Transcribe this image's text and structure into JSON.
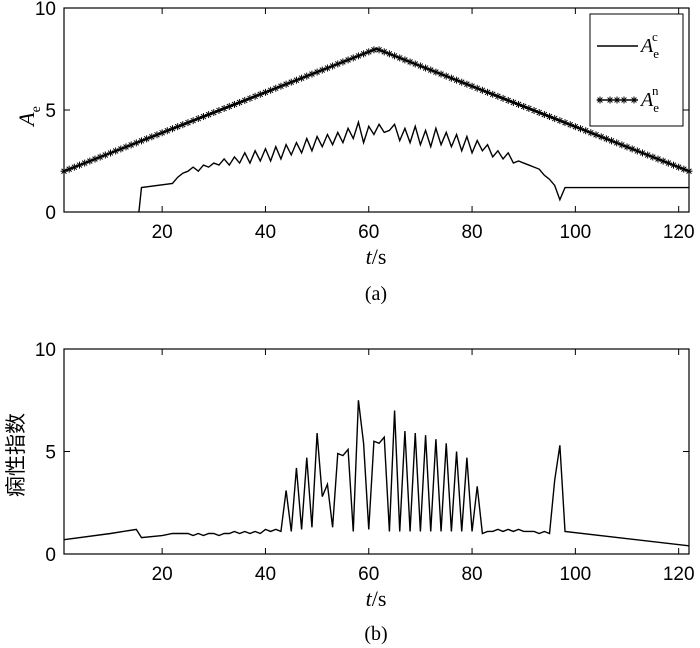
{
  "chart_data": [
    {
      "type": "line",
      "panel": "(a)",
      "caption": "(a)",
      "xlabel": "t/s",
      "ylabel": "A_e",
      "xlim": [
        1,
        122
      ],
      "ylim": [
        0,
        10
      ],
      "xticks": [
        20,
        40,
        60,
        80,
        100,
        120
      ],
      "yticks": [
        0,
        5,
        10
      ],
      "grid": false,
      "legend_position": "top-right",
      "series": [
        {
          "name": "A_e^c",
          "legend_main": "A",
          "legend_sub": "e",
          "legend_sup": "c",
          "marker": "none",
          "x": [
            15.5,
            16,
            22,
            23,
            24,
            25,
            26,
            27,
            28,
            29,
            30,
            31,
            32,
            33,
            34,
            35,
            36,
            37,
            38,
            39,
            40,
            41,
            42,
            43,
            44,
            45,
            46,
            47,
            48,
            49,
            50,
            51,
            52,
            53,
            54,
            55,
            56,
            57,
            58,
            59,
            60,
            61,
            62,
            63,
            64,
            65,
            66,
            67,
            68,
            69,
            70,
            71,
            72,
            73,
            74,
            75,
            76,
            77,
            78,
            79,
            80,
            81,
            82,
            83,
            84,
            85,
            86,
            87,
            88,
            89,
            90,
            91,
            92,
            93,
            94,
            95,
            96,
            97,
            98,
            122
          ],
          "y": [
            0,
            1.2,
            1.4,
            1.7,
            1.9,
            2.0,
            2.2,
            2.0,
            2.3,
            2.2,
            2.4,
            2.3,
            2.6,
            2.3,
            2.7,
            2.4,
            2.9,
            2.4,
            3.0,
            2.5,
            3.1,
            2.5,
            3.2,
            2.6,
            3.3,
            2.8,
            3.4,
            2.9,
            3.6,
            3.0,
            3.7,
            3.2,
            3.8,
            3.3,
            3.9,
            3.4,
            4.1,
            3.6,
            4.4,
            3.4,
            4.2,
            3.8,
            4.3,
            3.9,
            4.0,
            4.3,
            3.5,
            4.1,
            3.4,
            4.2,
            3.3,
            4.0,
            3.2,
            4.1,
            3.3,
            3.9,
            3.2,
            3.8,
            3.0,
            3.7,
            2.9,
            3.5,
            3.0,
            3.3,
            2.7,
            3.0,
            2.6,
            2.9,
            2.4,
            2.5,
            2.4,
            2.3,
            2.2,
            2.1,
            1.8,
            1.6,
            1.3,
            0.6,
            1.2,
            1.2
          ]
        },
        {
          "name": "A_e^n",
          "legend_main": "A",
          "legend_sub": "e",
          "legend_sup": "n",
          "marker": "star",
          "x": [
            1,
            61.5,
            122
          ],
          "y": [
            2.0,
            8.0,
            2.0
          ],
          "marker_step": 1
        }
      ]
    },
    {
      "type": "line",
      "panel": "(b)",
      "caption": "(b)",
      "xlabel": "t/s",
      "ylabel": "痫性指数",
      "xlim": [
        1,
        122
      ],
      "ylim": [
        0,
        10
      ],
      "xticks": [
        20,
        40,
        60,
        80,
        100,
        120
      ],
      "yticks": [
        0,
        5,
        10
      ],
      "grid": false,
      "series": [
        {
          "x": [
            1,
            10,
            15,
            16,
            20,
            22,
            25,
            26,
            27,
            28,
            29,
            30,
            31,
            32,
            33,
            34,
            35,
            36,
            37,
            38,
            39,
            40,
            41,
            42,
            43,
            44,
            45,
            46,
            47,
            48,
            49,
            50,
            51,
            52,
            53,
            54,
            55,
            56,
            57,
            58,
            59,
            60,
            61,
            62,
            63,
            64,
            65,
            66,
            67,
            68,
            69,
            70,
            71,
            72,
            73,
            74,
            75,
            76,
            77,
            78,
            79,
            80,
            81,
            82,
            83,
            84,
            85,
            86,
            87,
            88,
            89,
            90,
            91,
            92,
            93,
            94,
            95,
            96,
            97,
            98,
            122
          ],
          "y": [
            0.7,
            1.0,
            1.2,
            0.8,
            0.9,
            1.0,
            1.0,
            0.9,
            1.0,
            0.9,
            1.0,
            1.0,
            0.9,
            1.0,
            1.0,
            1.1,
            1.0,
            1.1,
            1.0,
            1.1,
            1.0,
            1.2,
            1.1,
            1.2,
            1.1,
            3.1,
            1.1,
            4.2,
            1.2,
            4.7,
            1.3,
            5.9,
            2.8,
            3.4,
            1.3,
            4.9,
            4.8,
            5.1,
            1.1,
            7.5,
            5.4,
            1.2,
            5.5,
            5.4,
            5.7,
            1.1,
            7.0,
            1.1,
            6.0,
            1.1,
            5.9,
            1.1,
            5.8,
            1.1,
            5.6,
            1.1,
            5.4,
            1.1,
            5.0,
            1.1,
            4.7,
            1.1,
            3.3,
            1.0,
            1.1,
            1.1,
            1.2,
            1.1,
            1.2,
            1.1,
            1.2,
            1.1,
            1.1,
            1.1,
            1.0,
            1.1,
            1.0,
            3.6,
            5.3,
            1.1,
            0.4
          ]
        }
      ]
    }
  ]
}
